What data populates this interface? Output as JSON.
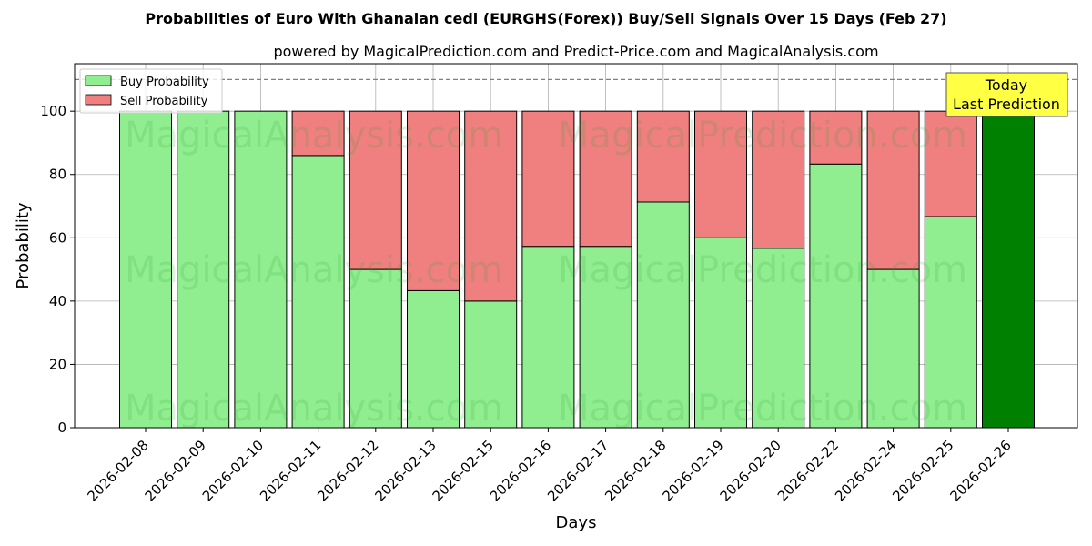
{
  "chart_data": {
    "type": "bar",
    "stacked": true,
    "title": "Probabilities of Euro With Ghanaian cedi (EURGHS(Forex)) Buy/Sell Signals Over 15 Days (Feb 27)",
    "subtitle": "powered by MagicalPrediction.com and Predict-Price.com and MagicalAnalysis.com",
    "xlabel": "Days",
    "ylabel": "Probability",
    "ylim": [
      0,
      115
    ],
    "yticks": [
      0,
      20,
      40,
      60,
      80,
      100
    ],
    "reference_line": 110,
    "grid": true,
    "legend_position": "top-left",
    "categories": [
      "2026-02-08",
      "2026-02-09",
      "2026-02-10",
      "2026-02-11",
      "2026-02-12",
      "2026-02-13",
      "2026-02-15",
      "2026-02-16",
      "2026-02-17",
      "2026-02-18",
      "2026-02-19",
      "2026-02-20",
      "2026-02-22",
      "2026-02-24",
      "2026-02-25",
      "2026-02-26"
    ],
    "series": [
      {
        "name": "Buy Probability",
        "color": "#90ee90",
        "values": [
          100,
          100,
          100,
          86,
          50,
          43.3,
          40,
          57.3,
          57.3,
          71.3,
          60,
          56.7,
          83.3,
          50,
          66.7,
          100
        ]
      },
      {
        "name": "Sell Probability",
        "color": "#f08080",
        "values": [
          0,
          0,
          0,
          14,
          50,
          56.7,
          60,
          42.7,
          42.7,
          28.7,
          40,
          43.3,
          16.7,
          50,
          33.3,
          0
        ]
      }
    ],
    "highlight": {
      "index": 15,
      "color": "#008000"
    },
    "annotation": {
      "line1": "Today",
      "line2": "Last Prediction"
    },
    "watermarks": [
      "MagicalAnalysis.com",
      "MagicalPrediction.com"
    ]
  }
}
